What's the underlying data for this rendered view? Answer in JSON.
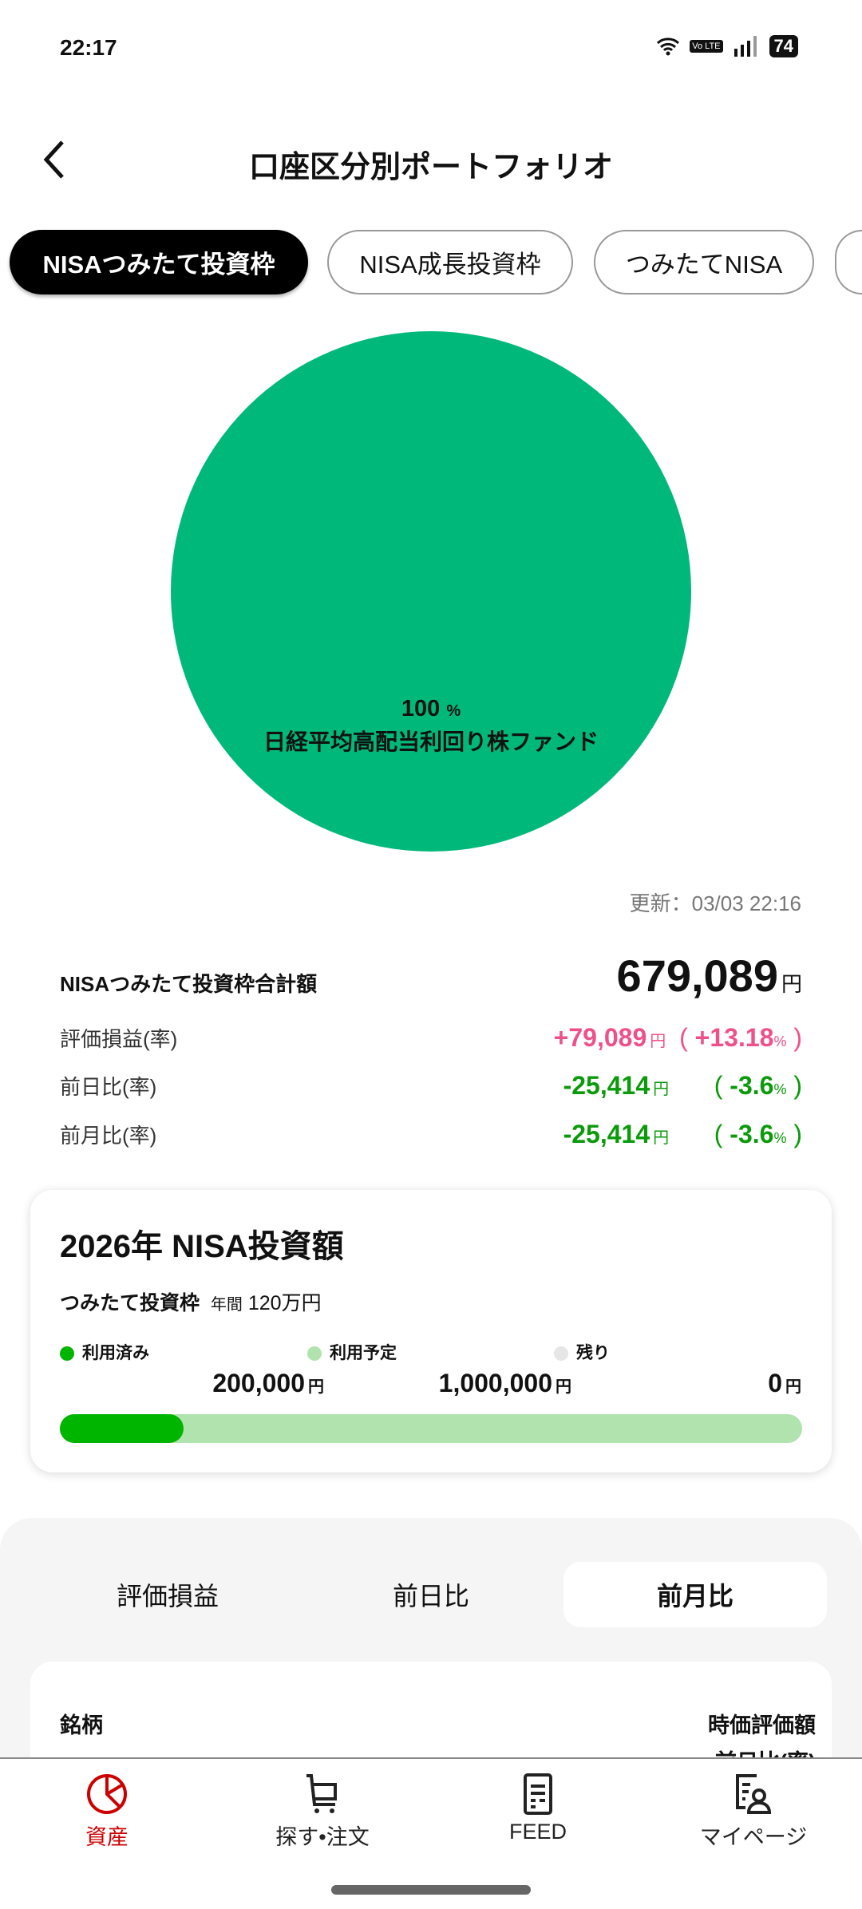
{
  "status_bar": {
    "time": "22:17",
    "battery": "74",
    "lte": "Vo LTE"
  },
  "header": {
    "title": "口座区分別ポートフォリオ"
  },
  "chips": [
    {
      "label": "NISAつみたて投資枠",
      "active": true
    },
    {
      "label": "NISA成長投資枠",
      "active": false
    },
    {
      "label": "つみたてNISA",
      "active": false
    },
    {
      "label": "",
      "active": false
    }
  ],
  "pie": {
    "color": "#00b87a",
    "slices": [
      {
        "name": "日経平均高配当利回り株ファンド",
        "percent": "100",
        "unit": "%"
      }
    ]
  },
  "updated": "更新：03/03 22:16",
  "summary": {
    "total_label": "NISAつみたて投資枠合計額",
    "total_value": "679,089",
    "yen": "円",
    "rows": [
      {
        "label": "評価損益(率)",
        "value": "+79,089",
        "rate": "+13.18",
        "color": "#f0508a"
      },
      {
        "label": "前日比(率)",
        "value": "-25,414",
        "rate": "-3.6",
        "color": "#0a9a0a"
      },
      {
        "label": "前月比(率)",
        "value": "-25,414",
        "rate": "-3.6",
        "color": "#0a9a0a"
      }
    ],
    "pct": "%"
  },
  "nisa_card": {
    "title": "2026年 NISA投資額",
    "subtitle": "つみたて投資枠",
    "annual_label": "年間",
    "annual_value": "120万円",
    "legend": [
      {
        "label": "利用済み",
        "value": "200,000",
        "color": "#00b500"
      },
      {
        "label": "利用予定",
        "value": "1,000,000",
        "color": "#b0e3ae"
      },
      {
        "label": "残り",
        "value": "0",
        "color": "#e6e6e6"
      }
    ],
    "progress_used_fraction": 0.1667
  },
  "segments": [
    {
      "label": "評価損益"
    },
    {
      "label": "前日比"
    },
    {
      "label": "前月比",
      "active": true
    }
  ],
  "table": {
    "col_name": "銘柄",
    "col_value": "時価評価額",
    "col_change": "前日比(率)"
  },
  "bottom_nav": [
    {
      "label": "資産",
      "active": true,
      "icon": "pie-chart-icon"
    },
    {
      "label": "探す•注文",
      "icon": "cart-icon"
    },
    {
      "label": "FEED",
      "icon": "document-icon"
    },
    {
      "label": "マイページ",
      "icon": "profile-icon"
    }
  ],
  "accent": "#cc0000"
}
